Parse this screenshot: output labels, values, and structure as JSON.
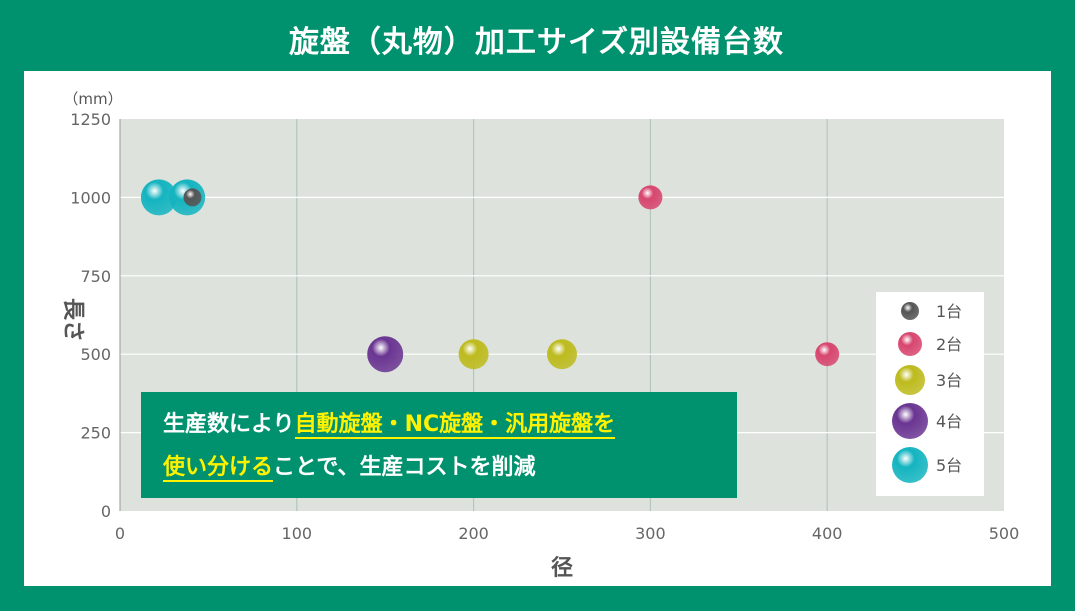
{
  "title": "旋盤（丸物）加工サイズ別設備台数",
  "y_unit": "（mm）",
  "callout": {
    "line1_prefix": "生産数により",
    "line1_highlight": "自動旋盤・NC旋盤・汎用旋盤を",
    "line2_highlight": "使い分ける",
    "line2_suffix": "ことで、生産コストを削減"
  },
  "colors": {
    "background": "#00916e",
    "plot_area": "#dde3dc",
    "highlight": "#fff200",
    "count_1": "#555555",
    "count_2": "#d7466e",
    "count_3": "#bdbb1e",
    "count_4": "#6a3592",
    "count_5": "#14b4c0"
  },
  "chart_data": {
    "type": "scatter",
    "xlabel": "径",
    "ylabel": "長さ",
    "xlim": [
      0,
      500
    ],
    "ylim": [
      0,
      1250
    ],
    "x_ticks": [
      "0",
      "100",
      "200",
      "300",
      "400",
      "500"
    ],
    "y_ticks": [
      "0",
      "250",
      "500",
      "750",
      "1000",
      "1250"
    ],
    "grid": "vertical and horizontal",
    "legend_position": "right",
    "legend": [
      {
        "label": "1台",
        "count": 1
      },
      {
        "label": "2台",
        "count": 2
      },
      {
        "label": "3台",
        "count": 3
      },
      {
        "label": "4台",
        "count": 4
      },
      {
        "label": "5台",
        "count": 5
      }
    ],
    "points": [
      {
        "x": 22,
        "y": 1000,
        "count": 5
      },
      {
        "x": 38,
        "y": 1000,
        "count": 5
      },
      {
        "x": 41,
        "y": 1000,
        "count": 1
      },
      {
        "x": 150,
        "y": 500,
        "count": 4
      },
      {
        "x": 200,
        "y": 500,
        "count": 3
      },
      {
        "x": 250,
        "y": 500,
        "count": 3
      },
      {
        "x": 300,
        "y": 1000,
        "count": 2
      },
      {
        "x": 400,
        "y": 500,
        "count": 2
      }
    ]
  }
}
